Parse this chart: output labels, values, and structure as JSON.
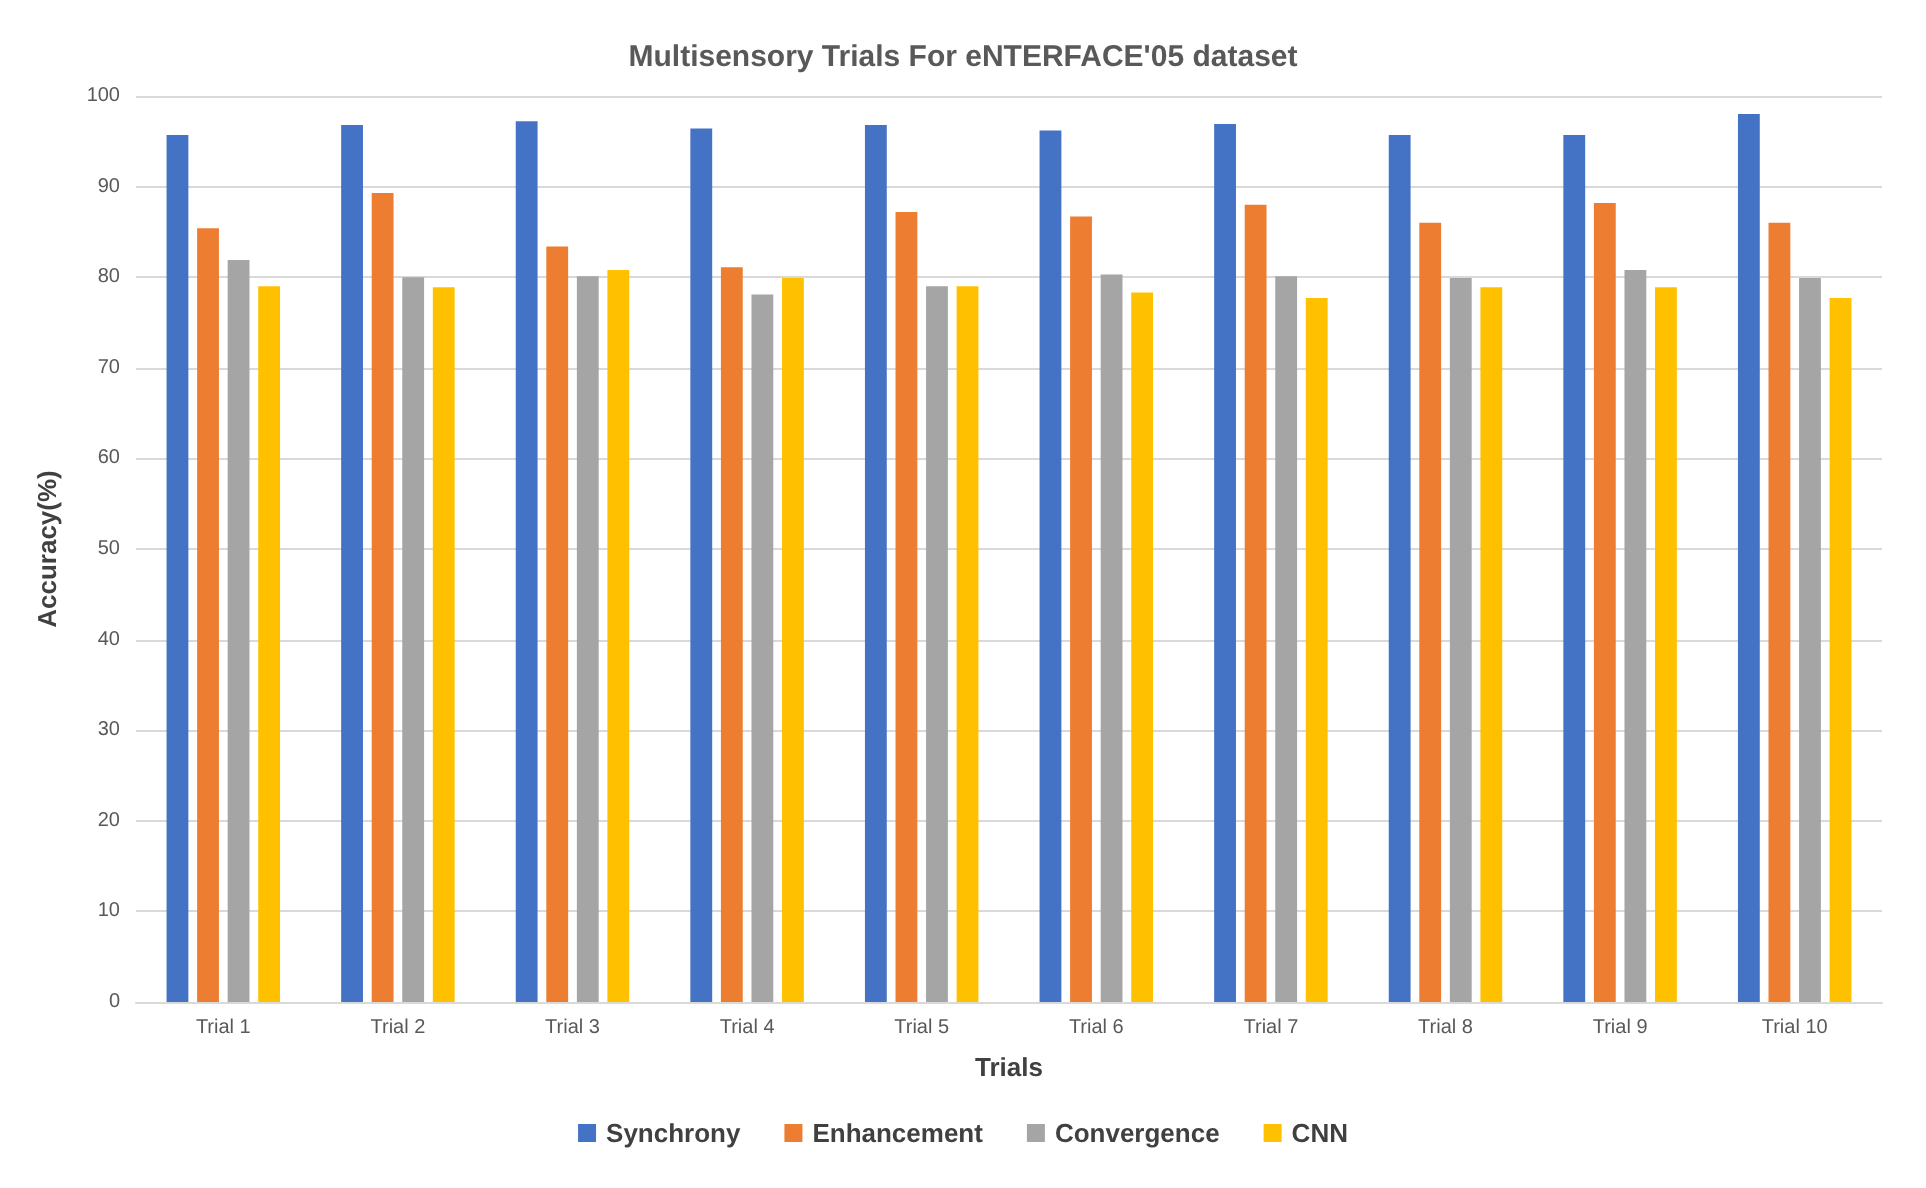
{
  "chart_data": {
    "type": "bar",
    "title": "Multisensory Trials For eNTERFACE'05 dataset",
    "xlabel": "Trials",
    "ylabel": "Accuracy(%)",
    "categories": [
      "Trial 1",
      "Trial 2",
      "Trial 3",
      "Trial 4",
      "Trial 5",
      "Trial 6",
      "Trial 7",
      "Trial 8",
      "Trial 9",
      "Trial 10"
    ],
    "series": [
      {
        "name": "Synchrony",
        "color": "#4472c4",
        "values": [
          95.7,
          96.8,
          97.2,
          96.4,
          96.8,
          96.2,
          96.9,
          95.7,
          95.7,
          98.0
        ]
      },
      {
        "name": "Enhancement",
        "color": "#ed7d31",
        "values": [
          85.4,
          89.3,
          83.4,
          81.1,
          87.2,
          86.7,
          88.0,
          86.0,
          88.2,
          86.0
        ]
      },
      {
        "name": "Convergence",
        "color": "#a5a5a5",
        "values": [
          81.9,
          80.0,
          80.1,
          78.1,
          79.0,
          80.3,
          80.1,
          79.9,
          80.8,
          79.9
        ]
      },
      {
        "name": "CNN",
        "color": "#ffc000",
        "values": [
          79.0,
          78.9,
          80.8,
          79.9,
          79.0,
          78.3,
          77.7,
          78.9,
          78.9,
          77.7
        ]
      }
    ],
    "ylim": [
      0,
      100
    ],
    "yticks": [
      0,
      10,
      20,
      30,
      40,
      50,
      60,
      70,
      80,
      90,
      100
    ],
    "grid": "y",
    "legend": "bottom"
  }
}
